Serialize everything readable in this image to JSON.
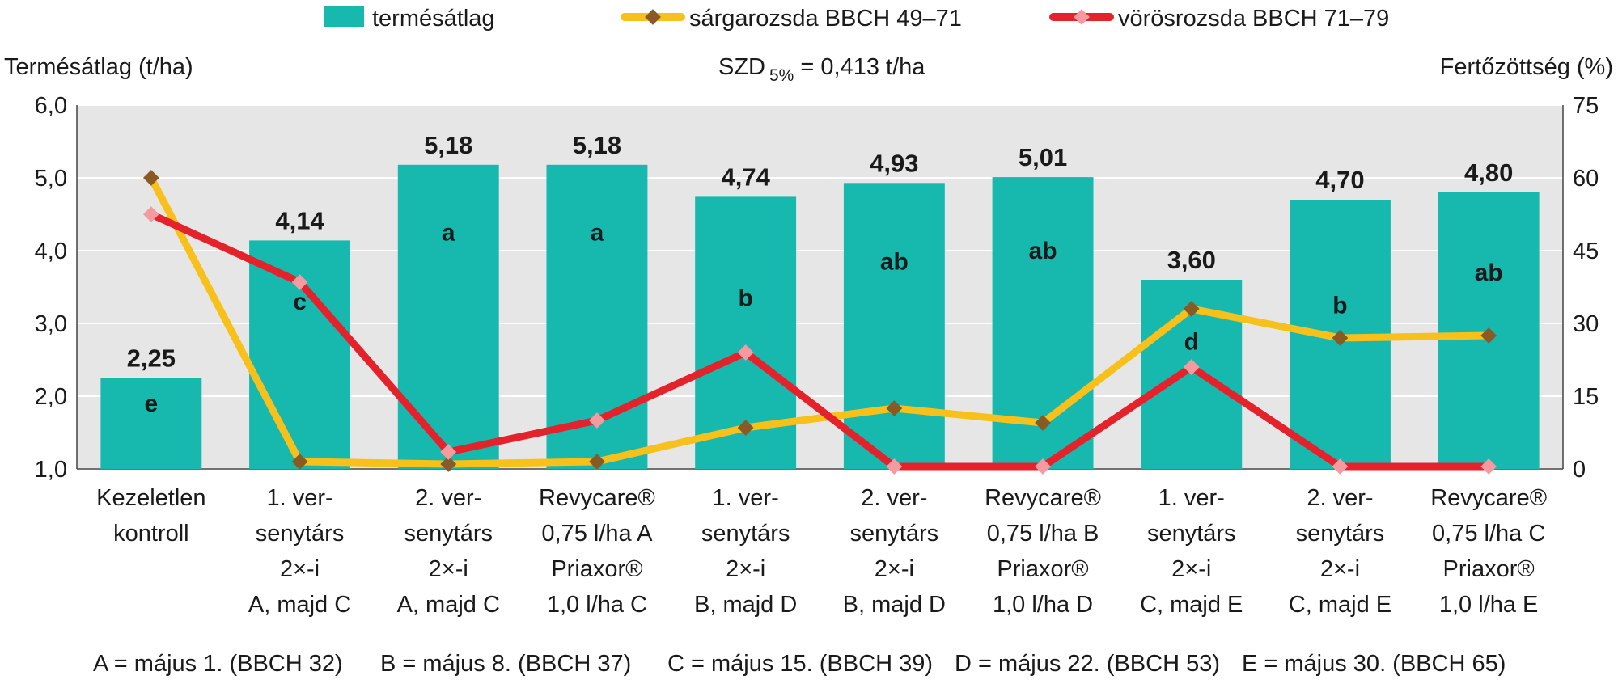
{
  "chart_data": {
    "type": "bar",
    "title": "",
    "annotation": "SZD 5% = 0,413 t/ha",
    "annotation_main": "SZD",
    "annotation_sub": "5%",
    "annotation_rest": " = 0,413 t/ha",
    "ylabel_left": "Termésátlag (t/ha)",
    "ylabel_right": "Fertőzöttség (%)",
    "ylim_left": [
      1.0,
      6.0
    ],
    "ylim_right": [
      0,
      75
    ],
    "yticks_left": [
      "1,0",
      "2,0",
      "3,0",
      "4,0",
      "5,0",
      "6,0"
    ],
    "yticks_right": [
      "0",
      "15",
      "30",
      "45",
      "60",
      "75"
    ],
    "categories": [
      [
        "Kezeletlen",
        "kontroll"
      ],
      [
        "1. ver-",
        "senytárs",
        "2×-i",
        "A, majd C"
      ],
      [
        "2. ver-",
        "senytárs",
        "2×-i",
        "A, majd C"
      ],
      [
        "Revycare®",
        "0,75 l/ha A",
        "Priaxor®",
        "1,0 l/ha C"
      ],
      [
        "1. ver-",
        "senytárs",
        "2×-i",
        "B, majd D"
      ],
      [
        "2. ver-",
        "senytárs",
        "2×-i",
        "B, majd D"
      ],
      [
        "Revycare®",
        "0,75 l/ha B",
        "Priaxor®",
        "1,0 l/ha D"
      ],
      [
        "1. ver-",
        "senytárs",
        "2×-i",
        "C, majd E"
      ],
      [
        "2. ver-",
        "senytárs",
        "2×-i",
        "C, majd E"
      ],
      [
        "Revycare®",
        "0,75 l/ha C",
        "Priaxor®",
        "1,0 l/ha E"
      ]
    ],
    "series": [
      {
        "name": "termésátlag",
        "kind": "bar",
        "axis": "left",
        "color": "#17b8ae",
        "values": [
          2.25,
          4.14,
          5.18,
          5.18,
          4.74,
          4.93,
          5.01,
          3.6,
          4.7,
          4.8
        ],
        "value_labels": [
          "2,25",
          "4,14",
          "5,18",
          "5,18",
          "4,74",
          "4,93",
          "5,01",
          "3,60",
          "4,70",
          "4,80"
        ],
        "group_letters": [
          "e",
          "c",
          "a",
          "a",
          "b",
          "ab",
          "ab",
          "d",
          "b",
          "ab"
        ],
        "group_letter_levels": [
          1.9,
          3.3,
          4.25,
          4.25,
          3.35,
          3.85,
          4.0,
          2.75,
          3.25,
          3.7
        ]
      },
      {
        "name": "sárgarozsda BBCH 49–71",
        "kind": "line",
        "axis": "right",
        "color": "#f8c01a",
        "marker_color": "#8a5a25",
        "values": [
          60.0,
          1.5,
          1.0,
          1.5,
          8.5,
          12.5,
          9.5,
          33.0,
          27.0,
          27.5
        ]
      },
      {
        "name": "vörösrozsda BBCH 71–79",
        "kind": "line",
        "axis": "right",
        "color": "#e3222b",
        "marker_color": "#f49aa0",
        "values": [
          52.5,
          38.5,
          3.5,
          10.0,
          24.0,
          0.5,
          0.5,
          21.0,
          0.5,
          0.5
        ]
      }
    ],
    "footnotes": [
      "A = május 1. (BBCH 32)",
      "B = május 8. (BBCH 37)",
      "C = május 15. (BBCH 39)",
      "D = május 22. (BBCH 53)",
      "E = május 30. (BBCH 65)"
    ],
    "plot_background": "#e6e6e6",
    "grid": "horizontal"
  }
}
